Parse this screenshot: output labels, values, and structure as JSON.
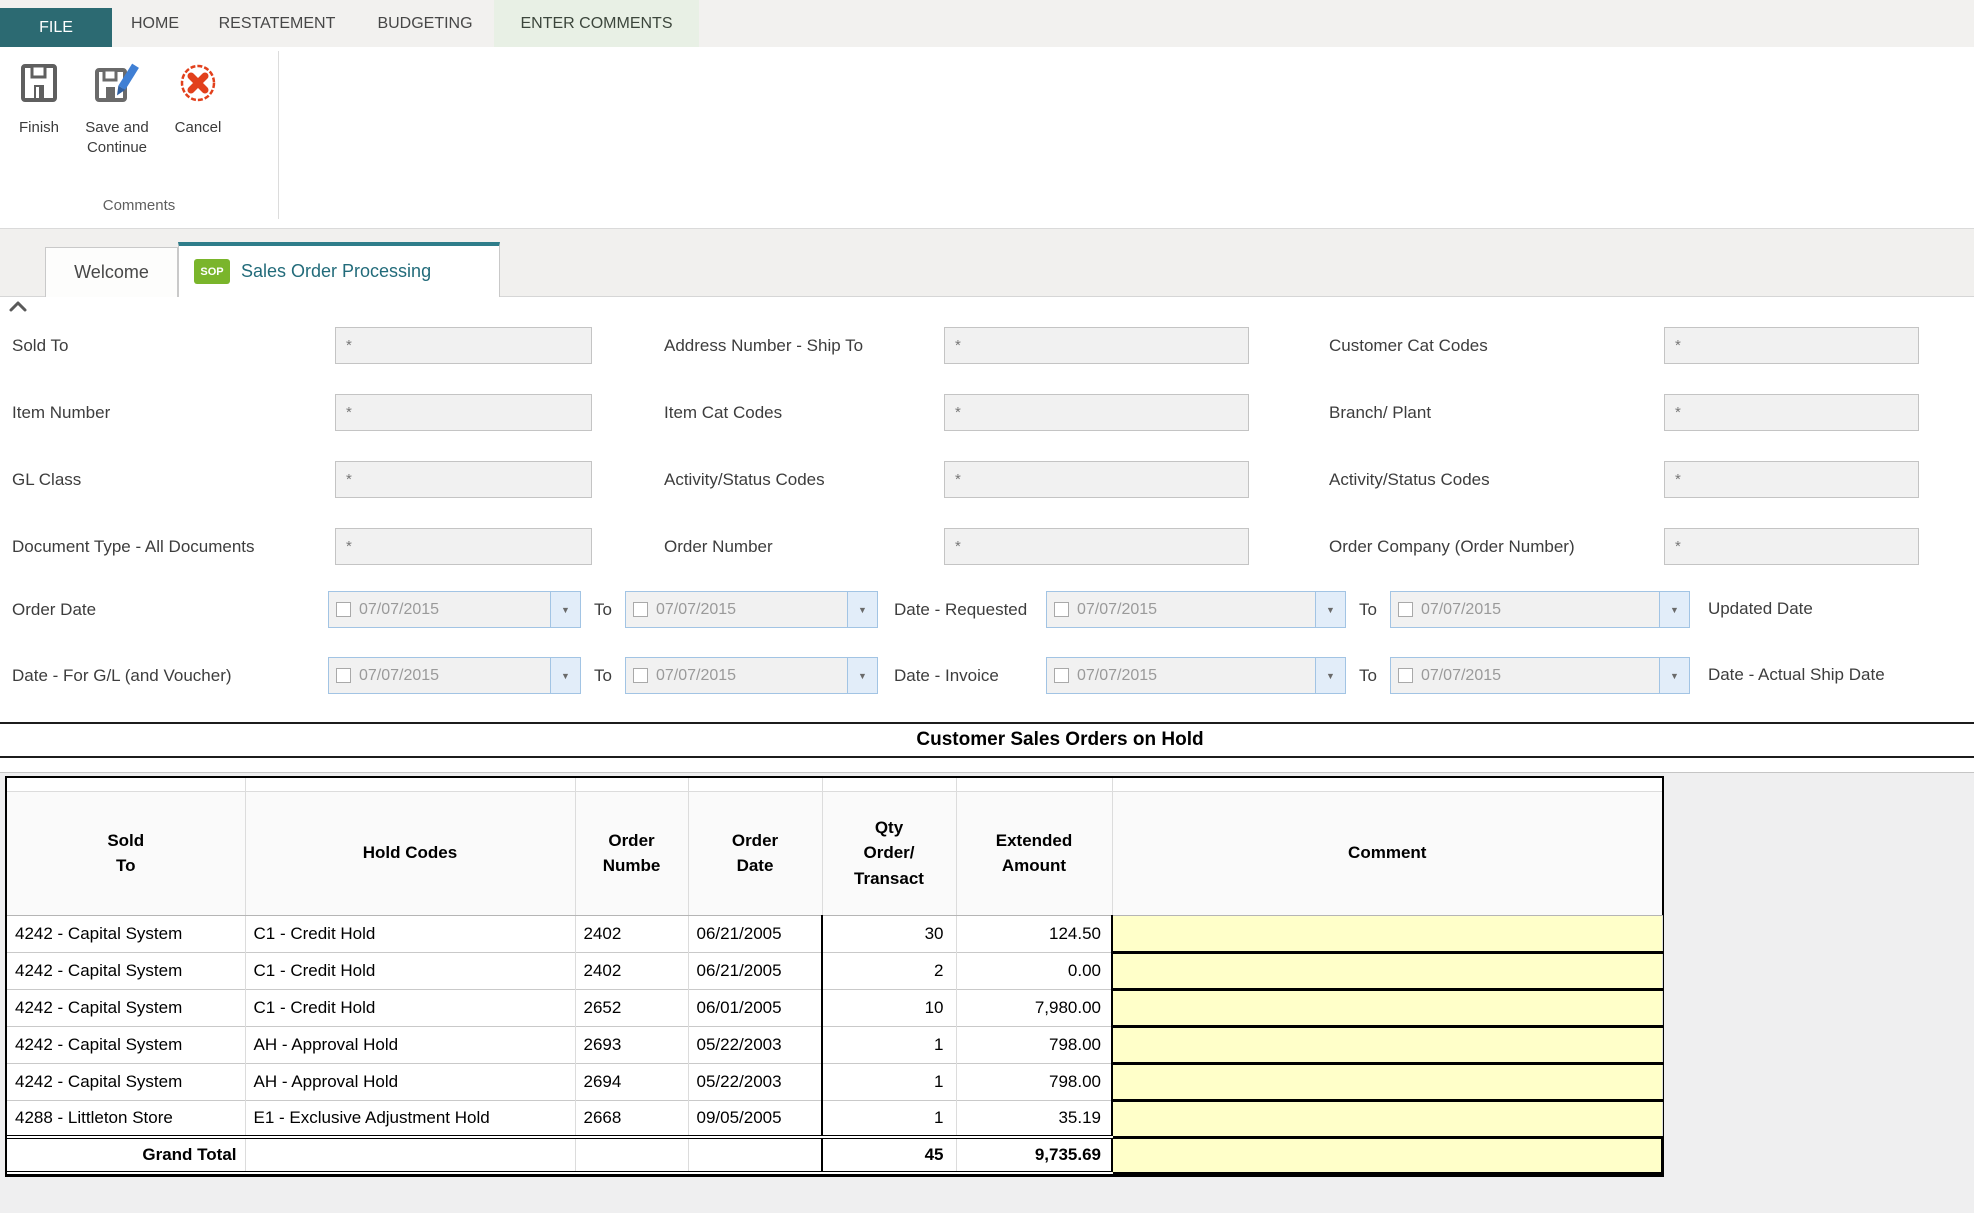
{
  "colors": {
    "file_tab_teal": "#2c6a72",
    "active_ribbon_tab_green": "#e8f0e5",
    "workspace_tab_accent_teal": "#2e7d8a",
    "sop_badge_green": "#7ab52b",
    "cancel_red": "#e2401c",
    "comment_cell_yellow": "#ffffc9"
  },
  "ribbon": {
    "file_label": "FILE",
    "tabs": [
      {
        "label": "HOME",
        "active": false
      },
      {
        "label": "RESTATEMENT",
        "active": false
      },
      {
        "label": "BUDGETING",
        "active": false
      },
      {
        "label": "ENTER COMMENTS",
        "active": true
      }
    ],
    "buttons": [
      {
        "label": "Finish",
        "icon": "save-icon"
      },
      {
        "label": "Save and Continue",
        "icon": "save-edit-icon"
      },
      {
        "label": "Cancel",
        "icon": "cancel-icon"
      }
    ],
    "group_label": "Comments"
  },
  "workspace": {
    "tabs": [
      {
        "label": "Welcome",
        "active": false
      },
      {
        "label": "Sales Order Processing",
        "badge": "SOP",
        "active": true
      }
    ]
  },
  "filters": {
    "text_fields": [
      {
        "label": "Sold To",
        "value": "*"
      },
      {
        "label": "Address Number - Ship To",
        "value": "*"
      },
      {
        "label": "Customer Cat Codes",
        "value": "*"
      },
      {
        "label": "Item Number",
        "value": "*"
      },
      {
        "label": "Item Cat Codes",
        "value": "*"
      },
      {
        "label": "Branch/ Plant",
        "value": "*"
      },
      {
        "label": "GL Class",
        "value": "*"
      },
      {
        "label": "Activity/Status Codes",
        "value": "*"
      },
      {
        "label": "Activity/Status Codes",
        "value": "*"
      },
      {
        "label": "Document Type - All Documents",
        "value": "*"
      },
      {
        "label": "Order Number",
        "value": "*"
      },
      {
        "label": "Order Company (Order Number)",
        "value": "*"
      }
    ],
    "date_rows": [
      {
        "label": "Order Date",
        "from": "07/07/2015",
        "to_word": "To",
        "to": "07/07/2015",
        "mid_label": "Date - Requested",
        "from2": "07/07/2015",
        "to2": "07/07/2015",
        "end_label": "Updated Date"
      },
      {
        "label": "Date - For G/L (and Voucher)",
        "from": "07/07/2015",
        "to_word": "To",
        "to": "07/07/2015",
        "mid_label": "Date - Invoice",
        "from2": "07/07/2015",
        "to2": "07/07/2015",
        "end_label": "Date - Actual Ship Date"
      }
    ]
  },
  "grid": {
    "title": "Customer Sales Orders on Hold",
    "columns": [
      {
        "id": "sold_to",
        "label": "Sold\nTo"
      },
      {
        "id": "hold_code",
        "label": "Hold Codes"
      },
      {
        "id": "order_number",
        "label": "Order\nNumbe"
      },
      {
        "id": "order_date",
        "label": "Order\nDate"
      },
      {
        "id": "qty",
        "label": "Qty\nOrder/\nTransact"
      },
      {
        "id": "amount",
        "label": "Extended\nAmount"
      },
      {
        "id": "comment",
        "label": "Comment"
      }
    ],
    "rows": [
      {
        "sold_to": "4242 - Capital System",
        "hold_code": "C1 - Credit Hold",
        "order_number": "2402",
        "order_date": "06/21/2005",
        "qty": "30",
        "amount": "124.50",
        "comment": ""
      },
      {
        "sold_to": "4242 - Capital System",
        "hold_code": "C1 - Credit Hold",
        "order_number": "2402",
        "order_date": "06/21/2005",
        "qty": "2",
        "amount": "0.00",
        "comment": ""
      },
      {
        "sold_to": "4242 - Capital System",
        "hold_code": "C1 - Credit Hold",
        "order_number": "2652",
        "order_date": "06/01/2005",
        "qty": "10",
        "amount": "7,980.00",
        "comment": ""
      },
      {
        "sold_to": "4242 - Capital System",
        "hold_code": "AH - Approval Hold",
        "order_number": "2693",
        "order_date": "05/22/2003",
        "qty": "1",
        "amount": "798.00",
        "comment": ""
      },
      {
        "sold_to": "4242 - Capital System",
        "hold_code": "AH - Approval Hold",
        "order_number": "2694",
        "order_date": "05/22/2003",
        "qty": "1",
        "amount": "798.00",
        "comment": ""
      },
      {
        "sold_to": "4288 - Littleton Store",
        "hold_code": "E1 - Exclusive Adjustment Hold",
        "order_number": "2668",
        "order_date": "09/05/2005",
        "qty": "1",
        "amount": "35.19",
        "comment": ""
      }
    ],
    "grand_total": {
      "label": "Grand Total",
      "qty": "45",
      "amount": "9,735.69"
    }
  }
}
